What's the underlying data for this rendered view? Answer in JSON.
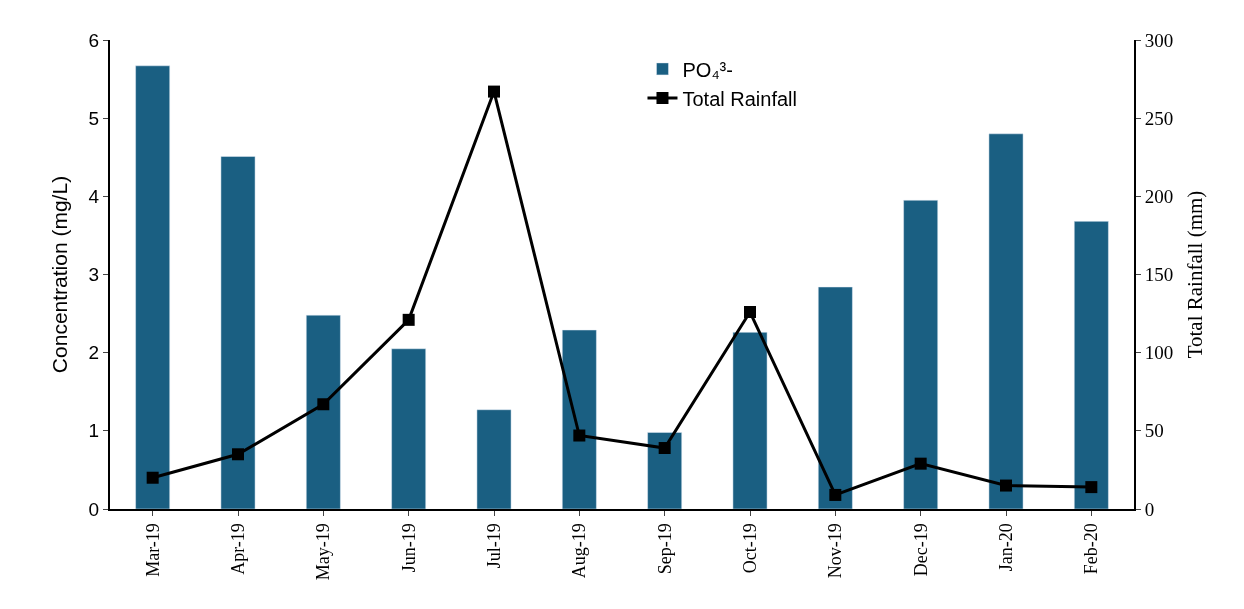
{
  "chart_data": {
    "type": "bar",
    "ylabel": "Concentration (mg/L)",
    "y2label": "Total Rainfall (mm)",
    "categories": [
      "Mar-19",
      "Apr-19",
      "May-19",
      "Jun-19",
      "Jul-19",
      "Aug-19",
      "Sep-19",
      "Oct-19",
      "Nov-19",
      "Dec-19",
      "Jan-20",
      "Feb-20"
    ],
    "series": [
      {
        "name": "PO₄³-",
        "color": "#1a5f82",
        "values": [
          5.67,
          4.51,
          2.48,
          2.05,
          1.27,
          2.29,
          0.98,
          2.26,
          2.84,
          3.95,
          4.8,
          3.68
        ]
      },
      {
        "name": "Total Rainfall",
        "type": "line",
        "axis": "y2",
        "color": "#000000",
        "marker": "square",
        "values": [
          20,
          35,
          67,
          121,
          267,
          47,
          39,
          126,
          9,
          29,
          15,
          14
        ]
      }
    ],
    "ylim": [
      0,
      6
    ],
    "yticks": [
      0,
      1,
      2,
      3,
      4,
      5,
      6
    ],
    "y2lim": [
      0,
      300
    ],
    "y2ticks": [
      0,
      50,
      100,
      150,
      200,
      250,
      300
    ],
    "legend": "top"
  }
}
